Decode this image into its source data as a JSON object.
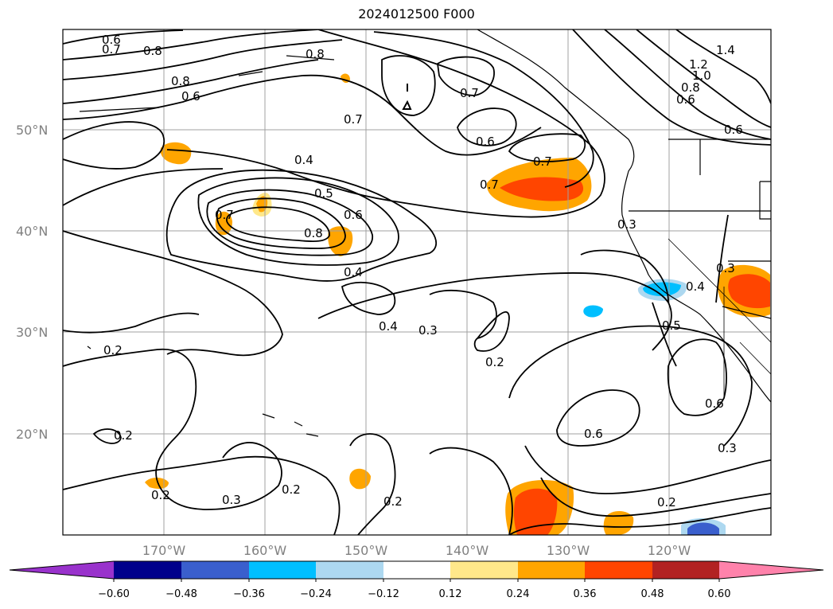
{
  "title": "2024012500 F000",
  "map": {
    "lat_labels": [
      "50°N",
      "40°N",
      "30°N",
      "20°N"
    ],
    "lon_labels": [
      "170°W",
      "160°W",
      "150°W",
      "140°W",
      "130°W",
      "120°W"
    ],
    "contour_labels": [
      {
        "text": "0.6"
      },
      {
        "text": "0.7"
      },
      {
        "text": "0.8"
      },
      {
        "text": "0.8"
      },
      {
        "text": "0.6"
      },
      {
        "text": "0.8"
      },
      {
        "text": "0.7"
      },
      {
        "text": "0.4"
      },
      {
        "text": "0.5"
      },
      {
        "text": "0.6"
      },
      {
        "text": "0.7"
      },
      {
        "text": "0.8"
      },
      {
        "text": "0.4"
      },
      {
        "text": "0.4"
      },
      {
        "text": "0.3"
      },
      {
        "text": "0.7"
      },
      {
        "text": "0.6"
      },
      {
        "text": "0.7"
      },
      {
        "text": "0.7"
      },
      {
        "text": "1.4"
      },
      {
        "text": "1.2"
      },
      {
        "text": "1.0"
      },
      {
        "text": "0.8"
      },
      {
        "text": "0.6"
      },
      {
        "text": "0.6"
      },
      {
        "text": "0.3"
      },
      {
        "text": "0.3"
      },
      {
        "text": "0.4"
      },
      {
        "text": "0.5"
      },
      {
        "text": "0.2"
      },
      {
        "text": "0.2"
      },
      {
        "text": "0.2"
      },
      {
        "text": "0.3"
      },
      {
        "text": "0.2"
      },
      {
        "text": "0.2"
      },
      {
        "text": "0.2"
      },
      {
        "text": "0.6"
      },
      {
        "text": "0.6"
      },
      {
        "text": "0.3"
      },
      {
        "text": "0.2"
      }
    ]
  },
  "colorbar": {
    "colors": [
      "#9932cc",
      "#00008b",
      "#3a5fcd",
      "#00bfff",
      "#add8f0",
      "#ffffff",
      "#ffe88a",
      "#ffa500",
      "#ff4500",
      "#b22222",
      "#ff82ab"
    ],
    "tick_labels": [
      "−0.60",
      "−0.48",
      "−0.36",
      "−0.24",
      "−0.12",
      "0.12",
      "0.24",
      "0.36",
      "0.48",
      "0.60"
    ]
  }
}
